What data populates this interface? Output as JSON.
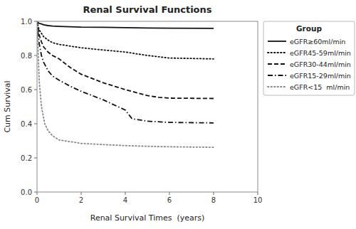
{
  "chart_data": {
    "type": "line",
    "title": "Renal Survival Functions",
    "x_label": "Renal Survival Times  (years)",
    "y_label": "Cum Survival",
    "xlim": [
      0,
      10
    ],
    "ylim": [
      0.0,
      1.0
    ],
    "xticks": [
      0,
      2,
      4,
      6,
      8,
      10
    ],
    "yticks": [
      {
        "value": 0.0,
        "label": "0.0"
      },
      0.2,
      0.4,
      0.6,
      0.8,
      {
        "value": 1.0,
        "label": "1.0"
      }
    ],
    "grid": false,
    "legend": "right",
    "legend_title": "Group",
    "series": [
      {
        "name": "eGFR≥60ml/min",
        "line_style": "solid",
        "color": "#111111",
        "x": [
          0,
          0.05,
          0.1,
          0.2,
          0.3,
          0.5,
          0.7,
          1.0,
          1.5,
          2.0,
          3.0,
          4.0,
          5.0,
          6.0,
          8.0
        ],
        "values": [
          1.0,
          0.993,
          0.988,
          0.985,
          0.98,
          0.975,
          0.972,
          0.97,
          0.968,
          0.966,
          0.965,
          0.963,
          0.961,
          0.96,
          0.959
        ]
      },
      {
        "name": "eGFR45-59ml/min",
        "line_style": "dotted",
        "color": "#111111",
        "x": [
          0,
          0.05,
          0.1,
          0.2,
          0.3,
          0.5,
          0.7,
          1.0,
          1.5,
          2.0,
          3.0,
          4.0,
          5.0,
          6.0,
          8.0
        ],
        "values": [
          1.0,
          0.97,
          0.95,
          0.93,
          0.91,
          0.89,
          0.875,
          0.865,
          0.855,
          0.845,
          0.832,
          0.82,
          0.8,
          0.785,
          0.78
        ]
      },
      {
        "name": "eGFR30-44ml/min",
        "line_style": "dashed",
        "color": "#111111",
        "x": [
          0,
          0.05,
          0.1,
          0.2,
          0.3,
          0.5,
          0.7,
          1.0,
          1.5,
          2.0,
          3.0,
          4.0,
          5.0,
          5.5,
          6.0,
          8.0
        ],
        "values": [
          1.0,
          0.96,
          0.92,
          0.88,
          0.85,
          0.82,
          0.8,
          0.78,
          0.73,
          0.69,
          0.64,
          0.6,
          0.565,
          0.555,
          0.55,
          0.548
        ]
      },
      {
        "name": "eGFR15-29ml/min",
        "line_style": "dashdot",
        "color": "#111111",
        "x": [
          0,
          0.05,
          0.1,
          0.2,
          0.3,
          0.5,
          0.7,
          1.0,
          1.5,
          2.0,
          3.0,
          4.0,
          4.3,
          5.0,
          6.0,
          8.0
        ],
        "values": [
          1.0,
          0.93,
          0.87,
          0.8,
          0.76,
          0.71,
          0.68,
          0.655,
          0.62,
          0.59,
          0.54,
          0.48,
          0.43,
          0.415,
          0.408,
          0.405
        ]
      },
      {
        "name": "eGFR<15  ml/min",
        "line_style": "dotted",
        "color": "#888888",
        "x": [
          0,
          0.05,
          0.1,
          0.2,
          0.35,
          0.5,
          0.7,
          1.0,
          2.0,
          3.0,
          4.0,
          5.0,
          6.0,
          8.0
        ],
        "values": [
          1.0,
          0.82,
          0.65,
          0.5,
          0.4,
          0.36,
          0.33,
          0.305,
          0.285,
          0.278,
          0.272,
          0.268,
          0.265,
          0.262
        ]
      }
    ]
  }
}
